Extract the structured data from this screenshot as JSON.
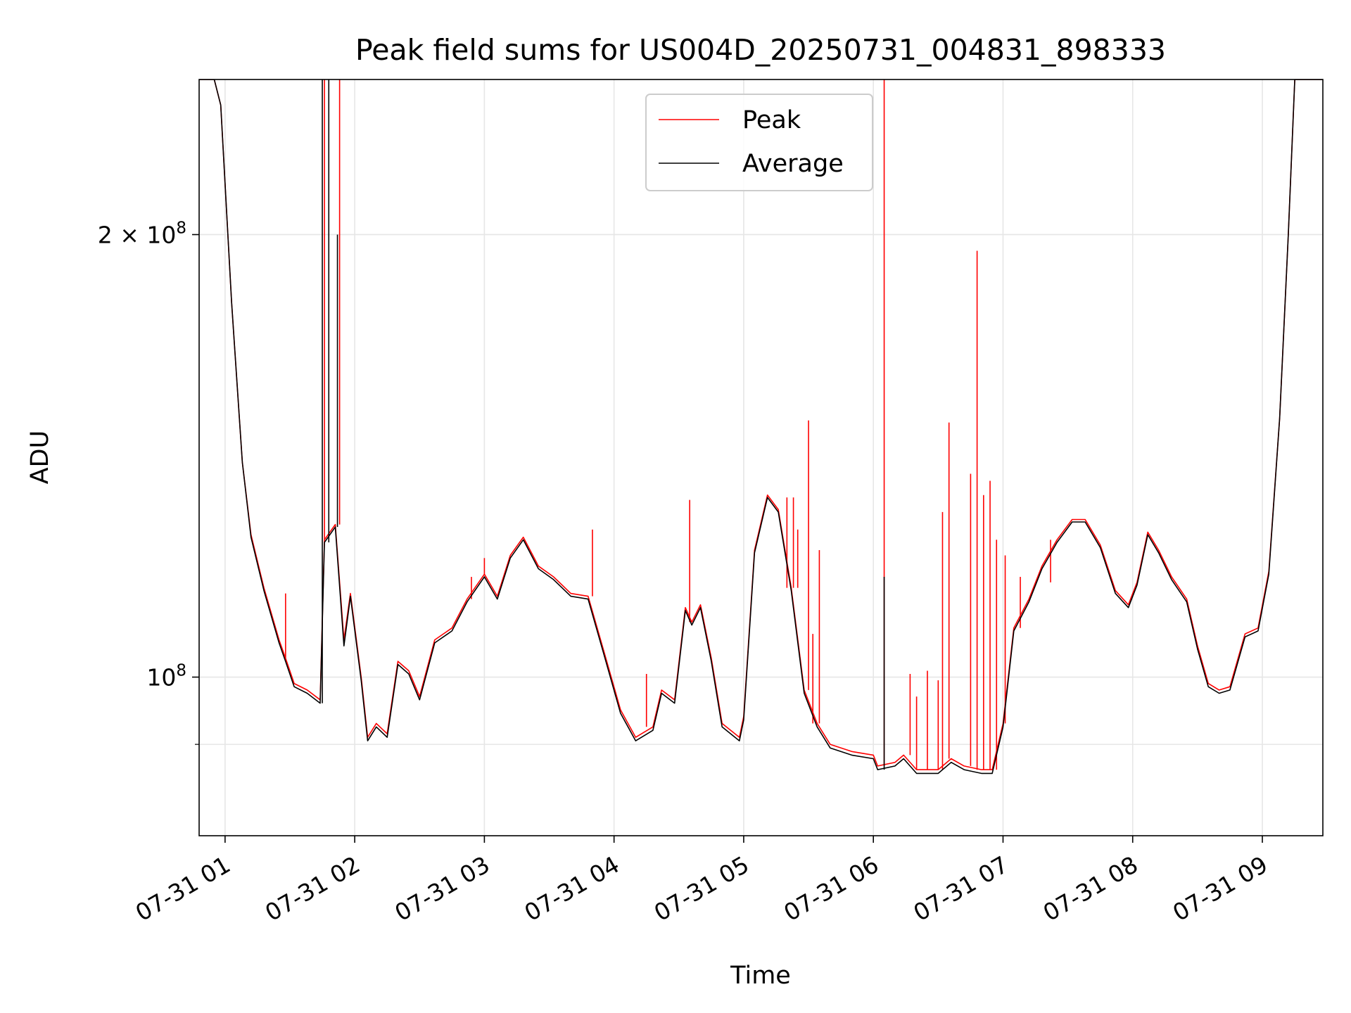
{
  "chart_data": {
    "type": "line",
    "title": "Peak field sums for US004D_20250731_004831_898333",
    "xlabel": "Time",
    "ylabel": "ADU",
    "yscale": "log",
    "grid": true,
    "legend_position": "top-center",
    "xlim": [
      "2025-07-31 00:48",
      "2025-07-31 09:28"
    ],
    "ylim": [
      78000000,
      255000000
    ],
    "x_ticks": [
      {
        "time": "2025-07-31 01:00",
        "label": "07-31 01"
      },
      {
        "time": "2025-07-31 02:00",
        "label": "07-31 02"
      },
      {
        "time": "2025-07-31 03:00",
        "label": "07-31 03"
      },
      {
        "time": "2025-07-31 04:00",
        "label": "07-31 04"
      },
      {
        "time": "2025-07-31 05:00",
        "label": "07-31 05"
      },
      {
        "time": "2025-07-31 06:00",
        "label": "07-31 06"
      },
      {
        "time": "2025-07-31 07:00",
        "label": "07-31 07"
      },
      {
        "time": "2025-07-31 08:00",
        "label": "07-31 08"
      },
      {
        "time": "2025-07-31 09:00",
        "label": "07-31 09"
      }
    ],
    "y_ticks": [
      {
        "value": 100000000,
        "base": "10",
        "exp": "8",
        "mult": ""
      },
      {
        "value": 200000000,
        "base": "10",
        "exp": "8",
        "mult": "2 × "
      }
    ],
    "y_minor_ticks": [
      90000000
    ],
    "series": [
      {
        "name": "Peak",
        "color": "#ff0000",
        "points": [
          [
            "2025-07-31 00:48",
            255000000
          ],
          [
            "2025-07-31 00:55",
            255000000
          ],
          [
            "2025-07-31 00:58",
            245000000
          ],
          [
            "2025-07-31 01:03",
            180000000
          ],
          [
            "2025-07-31 01:08",
            140000000
          ],
          [
            "2025-07-31 01:12",
            125000000
          ],
          [
            "2025-07-31 01:18",
            115000000
          ],
          [
            "2025-07-31 01:25",
            106000000
          ],
          [
            "2025-07-31 01:28",
            103000000
          ],
          [
            "2025-07-31 01:32",
            99000000
          ],
          [
            "2025-07-31 01:38",
            98000000
          ],
          [
            "2025-07-31 01:44",
            96500000
          ],
          [
            "2025-07-31 01:46",
            124000000
          ],
          [
            "2025-07-31 01:51",
            127000000
          ],
          [
            "2025-07-31 01:55",
            106000000
          ],
          [
            "2025-07-31 01:58",
            114000000
          ],
          [
            "2025-07-31 02:03",
            100000000
          ],
          [
            "2025-07-31 02:06",
            91000000
          ],
          [
            "2025-07-31 02:10",
            93000000
          ],
          [
            "2025-07-31 02:15",
            91500000
          ],
          [
            "2025-07-31 02:20",
            102500000
          ],
          [
            "2025-07-31 02:25",
            101000000
          ],
          [
            "2025-07-31 02:30",
            97000000
          ],
          [
            "2025-07-31 02:37",
            106000000
          ],
          [
            "2025-07-31 02:45",
            108000000
          ],
          [
            "2025-07-31 02:52",
            113000000
          ],
          [
            "2025-07-31 03:00",
            117500000
          ],
          [
            "2025-07-31 03:06",
            113500000
          ],
          [
            "2025-07-31 03:12",
            121000000
          ],
          [
            "2025-07-31 03:18",
            124500000
          ],
          [
            "2025-07-31 03:25",
            119000000
          ],
          [
            "2025-07-31 03:32",
            117000000
          ],
          [
            "2025-07-31 03:40",
            114000000
          ],
          [
            "2025-07-31 03:48",
            113500000
          ],
          [
            "2025-07-31 03:55",
            104500000
          ],
          [
            "2025-07-31 04:03",
            95000000
          ],
          [
            "2025-07-31 04:10",
            91000000
          ],
          [
            "2025-07-31 04:18",
            92500000
          ],
          [
            "2025-07-31 04:22",
            98000000
          ],
          [
            "2025-07-31 04:28",
            96500000
          ],
          [
            "2025-07-31 04:33",
            111500000
          ],
          [
            "2025-07-31 04:36",
            109000000
          ],
          [
            "2025-07-31 04:40",
            112000000
          ],
          [
            "2025-07-31 04:45",
            103000000
          ],
          [
            "2025-07-31 04:50",
            93000000
          ],
          [
            "2025-07-31 04:58",
            91000000
          ],
          [
            "2025-07-31 05:00",
            94000000
          ],
          [
            "2025-07-31 05:05",
            122000000
          ],
          [
            "2025-07-31 05:11",
            133000000
          ],
          [
            "2025-07-31 05:16",
            130000000
          ],
          [
            "2025-07-31 05:22",
            115000000
          ],
          [
            "2025-07-31 05:28",
            98000000
          ],
          [
            "2025-07-31 05:34",
            93000000
          ],
          [
            "2025-07-31 05:40",
            90000000
          ],
          [
            "2025-07-31 05:50",
            89000000
          ],
          [
            "2025-07-31 06:00",
            88500000
          ],
          [
            "2025-07-31 06:02",
            87000000
          ],
          [
            "2025-07-31 06:10",
            87500000
          ],
          [
            "2025-07-31 06:14",
            88500000
          ],
          [
            "2025-07-31 06:20",
            86500000
          ],
          [
            "2025-07-31 06:30",
            86500000
          ],
          [
            "2025-07-31 06:36",
            88000000
          ],
          [
            "2025-07-31 06:42",
            87000000
          ],
          [
            "2025-07-31 06:50",
            86500000
          ],
          [
            "2025-07-31 06:55",
            86500000
          ],
          [
            "2025-07-31 07:00",
            93000000
          ],
          [
            "2025-07-31 07:05",
            108000000
          ],
          [
            "2025-07-31 07:12",
            113000000
          ],
          [
            "2025-07-31 07:18",
            119000000
          ],
          [
            "2025-07-31 07:25",
            124000000
          ],
          [
            "2025-07-31 07:32",
            128000000
          ],
          [
            "2025-07-31 07:38",
            128000000
          ],
          [
            "2025-07-31 07:45",
            123000000
          ],
          [
            "2025-07-31 07:52",
            114500000
          ],
          [
            "2025-07-31 07:58",
            112000000
          ],
          [
            "2025-07-31 08:02",
            116000000
          ],
          [
            "2025-07-31 08:07",
            125500000
          ],
          [
            "2025-07-31 08:12",
            122000000
          ],
          [
            "2025-07-31 08:18",
            117000000
          ],
          [
            "2025-07-31 08:25",
            113000000
          ],
          [
            "2025-07-31 08:30",
            105000000
          ],
          [
            "2025-07-31 08:35",
            99000000
          ],
          [
            "2025-07-31 08:40",
            98000000
          ],
          [
            "2025-07-31 08:45",
            98500000
          ],
          [
            "2025-07-31 08:52",
            107000000
          ],
          [
            "2025-07-31 08:58",
            108000000
          ],
          [
            "2025-07-31 09:03",
            118000000
          ],
          [
            "2025-07-31 09:08",
            150000000
          ],
          [
            "2025-07-31 09:12",
            200000000
          ],
          [
            "2025-07-31 09:15",
            255000000
          ],
          [
            "2025-07-31 09:28",
            255000000
          ]
        ],
        "spikes": [
          [
            "2025-07-31 01:46",
            255000000
          ],
          [
            "2025-07-31 01:53",
            255000000
          ],
          [
            "2025-07-31 01:28",
            114000000
          ],
          [
            "2025-07-31 02:54",
            117000000
          ],
          [
            "2025-07-31 03:00",
            120500000
          ],
          [
            "2025-07-31 03:50",
            126000000
          ],
          [
            "2025-07-31 04:15",
            100500000
          ],
          [
            "2025-07-31 04:35",
            132000000
          ],
          [
            "2025-07-31 05:20",
            132500000
          ],
          [
            "2025-07-31 05:23",
            132500000
          ],
          [
            "2025-07-31 05:25",
            126000000
          ],
          [
            "2025-07-31 05:30",
            149500000
          ],
          [
            "2025-07-31 05:32",
            107000000
          ],
          [
            "2025-07-31 05:35",
            122000000
          ],
          [
            "2025-07-31 06:05",
            255000000
          ],
          [
            "2025-07-31 06:17",
            100500000
          ],
          [
            "2025-07-31 06:20",
            97000000
          ],
          [
            "2025-07-31 06:25",
            101000000
          ],
          [
            "2025-07-31 06:30",
            99500000
          ],
          [
            "2025-07-31 06:32",
            129500000
          ],
          [
            "2025-07-31 06:35",
            149000000
          ],
          [
            "2025-07-31 06:45",
            137500000
          ],
          [
            "2025-07-31 06:48",
            195000000
          ],
          [
            "2025-07-31 06:51",
            133000000
          ],
          [
            "2025-07-31 06:54",
            136000000
          ],
          [
            "2025-07-31 06:57",
            124000000
          ],
          [
            "2025-07-31 07:01",
            121000000
          ],
          [
            "2025-07-31 07:08",
            117000000
          ],
          [
            "2025-07-31 07:22",
            116000000
          ]
        ]
      },
      {
        "name": "Average",
        "color": "#000000",
        "points": [
          [
            "2025-07-31 00:48",
            255000000
          ],
          [
            "2025-07-31 00:55",
            255000000
          ],
          [
            "2025-07-31 00:58",
            245000000
          ],
          [
            "2025-07-31 01:03",
            180000000
          ],
          [
            "2025-07-31 01:08",
            140000000
          ],
          [
            "2025-07-31 01:12",
            124500000
          ],
          [
            "2025-07-31 01:18",
            114500000
          ],
          [
            "2025-07-31 01:25",
            105500000
          ],
          [
            "2025-07-31 01:28",
            102500000
          ],
          [
            "2025-07-31 01:32",
            98500000
          ],
          [
            "2025-07-31 01:38",
            97500000
          ],
          [
            "2025-07-31 01:44",
            96000000
          ],
          [
            "2025-07-31 01:46",
            123500000
          ],
          [
            "2025-07-31 01:51",
            126500000
          ],
          [
            "2025-07-31 01:55",
            105000000
          ],
          [
            "2025-07-31 01:58",
            113500000
          ],
          [
            "2025-07-31 02:03",
            99500000
          ],
          [
            "2025-07-31 02:06",
            90500000
          ],
          [
            "2025-07-31 02:10",
            92500000
          ],
          [
            "2025-07-31 02:15",
            91000000
          ],
          [
            "2025-07-31 02:20",
            102000000
          ],
          [
            "2025-07-31 02:25",
            100500000
          ],
          [
            "2025-07-31 02:30",
            96500000
          ],
          [
            "2025-07-31 02:37",
            105500000
          ],
          [
            "2025-07-31 02:45",
            107500000
          ],
          [
            "2025-07-31 02:52",
            112500000
          ],
          [
            "2025-07-31 03:00",
            117000000
          ],
          [
            "2025-07-31 03:06",
            113000000
          ],
          [
            "2025-07-31 03:12",
            120500000
          ],
          [
            "2025-07-31 03:18",
            124000000
          ],
          [
            "2025-07-31 03:25",
            118500000
          ],
          [
            "2025-07-31 03:32",
            116500000
          ],
          [
            "2025-07-31 03:40",
            113500000
          ],
          [
            "2025-07-31 03:48",
            113000000
          ],
          [
            "2025-07-31 03:55",
            104000000
          ],
          [
            "2025-07-31 04:03",
            94500000
          ],
          [
            "2025-07-31 04:10",
            90500000
          ],
          [
            "2025-07-31 04:18",
            92000000
          ],
          [
            "2025-07-31 04:22",
            97500000
          ],
          [
            "2025-07-31 04:28",
            96000000
          ],
          [
            "2025-07-31 04:33",
            111000000
          ],
          [
            "2025-07-31 04:36",
            108500000
          ],
          [
            "2025-07-31 04:40",
            111500000
          ],
          [
            "2025-07-31 04:45",
            102500000
          ],
          [
            "2025-07-31 04:50",
            92500000
          ],
          [
            "2025-07-31 04:58",
            90500000
          ],
          [
            "2025-07-31 05:00",
            93500000
          ],
          [
            "2025-07-31 05:05",
            121500000
          ],
          [
            "2025-07-31 05:11",
            132500000
          ],
          [
            "2025-07-31 05:16",
            129500000
          ],
          [
            "2025-07-31 05:22",
            114500000
          ],
          [
            "2025-07-31 05:28",
            97500000
          ],
          [
            "2025-07-31 05:34",
            92500000
          ],
          [
            "2025-07-31 05:40",
            89500000
          ],
          [
            "2025-07-31 05:50",
            88500000
          ],
          [
            "2025-07-31 06:00",
            88000000
          ],
          [
            "2025-07-31 06:02",
            86500000
          ],
          [
            "2025-07-31 06:10",
            87000000
          ],
          [
            "2025-07-31 06:14",
            88000000
          ],
          [
            "2025-07-31 06:20",
            86000000
          ],
          [
            "2025-07-31 06:30",
            86000000
          ],
          [
            "2025-07-31 06:36",
            87500000
          ],
          [
            "2025-07-31 06:42",
            86500000
          ],
          [
            "2025-07-31 06:50",
            86000000
          ],
          [
            "2025-07-31 06:55",
            86000000
          ],
          [
            "2025-07-31 07:00",
            92500000
          ],
          [
            "2025-07-31 07:05",
            107500000
          ],
          [
            "2025-07-31 07:12",
            112500000
          ],
          [
            "2025-07-31 07:18",
            118500000
          ],
          [
            "2025-07-31 07:25",
            123500000
          ],
          [
            "2025-07-31 07:32",
            127500000
          ],
          [
            "2025-07-31 07:38",
            127500000
          ],
          [
            "2025-07-31 07:45",
            122500000
          ],
          [
            "2025-07-31 07:52",
            114000000
          ],
          [
            "2025-07-31 07:58",
            111500000
          ],
          [
            "2025-07-31 08:02",
            115500000
          ],
          [
            "2025-07-31 08:07",
            125000000
          ],
          [
            "2025-07-31 08:12",
            121500000
          ],
          [
            "2025-07-31 08:18",
            116500000
          ],
          [
            "2025-07-31 08:25",
            112500000
          ],
          [
            "2025-07-31 08:30",
            104500000
          ],
          [
            "2025-07-31 08:35",
            98500000
          ],
          [
            "2025-07-31 08:40",
            97500000
          ],
          [
            "2025-07-31 08:45",
            98000000
          ],
          [
            "2025-07-31 08:52",
            106500000
          ],
          [
            "2025-07-31 08:58",
            107500000
          ],
          [
            "2025-07-31 09:03",
            117500000
          ],
          [
            "2025-07-31 09:08",
            150000000
          ],
          [
            "2025-07-31 09:12",
            200000000
          ],
          [
            "2025-07-31 09:15",
            255000000
          ],
          [
            "2025-07-31 09:28",
            255000000
          ]
        ],
        "spikes": [
          [
            "2025-07-31 01:45",
            255000000
          ],
          [
            "2025-07-31 01:48",
            255000000
          ],
          [
            "2025-07-31 01:52",
            200000000
          ],
          [
            "2025-07-31 06:05",
            117000000
          ]
        ]
      }
    ]
  }
}
